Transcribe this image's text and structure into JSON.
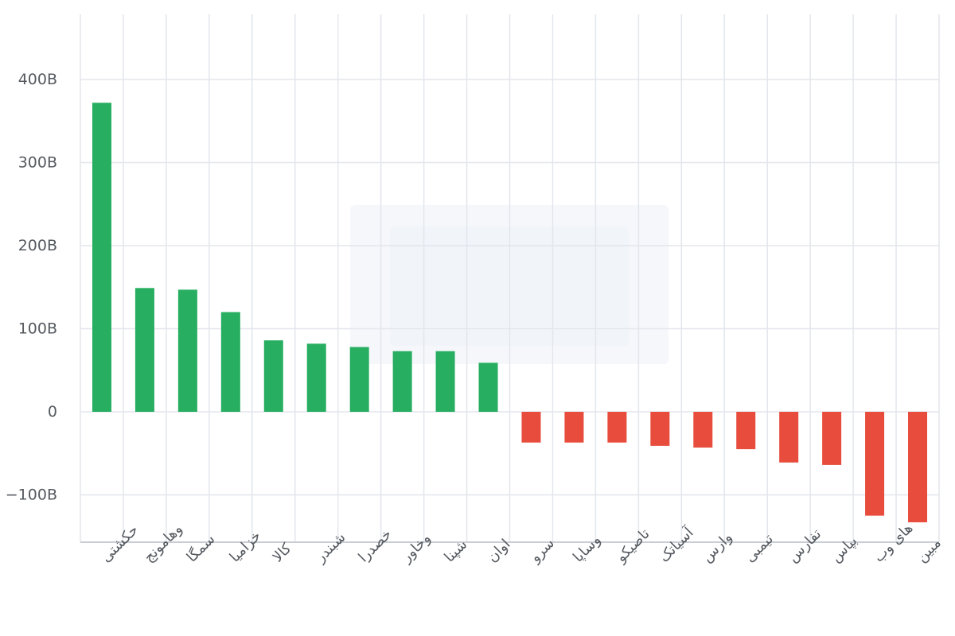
{
  "chart_data": {
    "type": "bar",
    "title": "",
    "xlabel": "",
    "ylabel": "",
    "categories": [
      "حکشتی",
      "وهامونج",
      "سمگا",
      "خزامیا",
      "کالا",
      "شبندر",
      "خصدرا",
      "وخاور",
      "شپنا",
      "اوان",
      "سرو",
      "وساپا",
      "تاصیکو",
      "آسیاتک",
      "وارس",
      "تیمبی",
      "تفارس",
      "بپاس",
      "های وب",
      "مبین"
    ],
    "values": [
      372,
      149,
      147,
      120,
      86,
      82,
      78,
      73,
      73,
      59,
      -37,
      -37,
      -37,
      -41,
      -43,
      -45,
      -61,
      -64,
      -125,
      -133
    ],
    "units_scale": "billions",
    "ylim": [
      -155,
      480
    ],
    "yticks": [
      400,
      300,
      200,
      100,
      0,
      -100
    ],
    "ytick_labels": [
      "400B",
      "300B",
      "200B",
      "100B",
      "0",
      "−100B"
    ],
    "grid": true,
    "legend": "none",
    "colors": {
      "positive": "#27ae60",
      "negative": "#e74c3c",
      "grid": "#e3e6ec",
      "axis": "#c8ccd4"
    }
  }
}
